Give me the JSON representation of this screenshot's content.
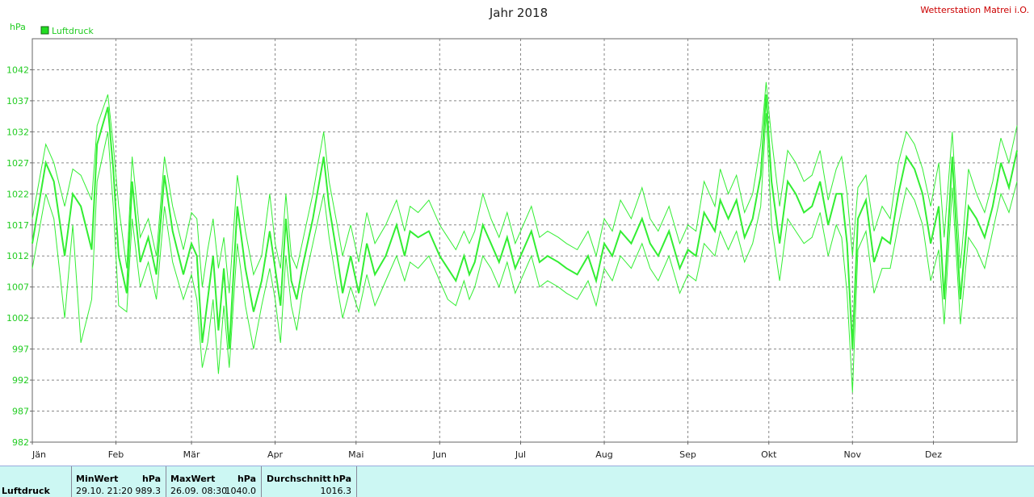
{
  "title": "Jahr 2018",
  "station": "Wetterstation Matrei i.O.",
  "unit": "hPa",
  "legend": {
    "label": "Luftdruck",
    "color": "#22dd22"
  },
  "chart_data": {
    "type": "line",
    "ylim": [
      982,
      1047
    ],
    "yticks": [
      982,
      987,
      992,
      997,
      1002,
      1007,
      1012,
      1017,
      1022,
      1027,
      1032,
      1037,
      1042
    ],
    "xlim": [
      0,
      365
    ],
    "months": [
      "Jän",
      "Feb",
      "Mär",
      "Apr",
      "Mai",
      "Jun",
      "Jul",
      "Aug",
      "Sep",
      "Okt",
      "Nov",
      "Dez"
    ],
    "month_starts": [
      0,
      31,
      59,
      90,
      120,
      151,
      181,
      212,
      243,
      273,
      304,
      334
    ],
    "grid": true,
    "series": [
      {
        "role": "max",
        "x": [
          0,
          5,
          8,
          12,
          15,
          18,
          22,
          24,
          28,
          30,
          32,
          35,
          37,
          40,
          43,
          46,
          49,
          52,
          56,
          59,
          61,
          63,
          65,
          67,
          69,
          71,
          73,
          76,
          79,
          82,
          85,
          88,
          90,
          92,
          94,
          96,
          98,
          100,
          104,
          108,
          110,
          113,
          115,
          118,
          121,
          124,
          127,
          131,
          135,
          138,
          140,
          143,
          147,
          151,
          154,
          157,
          160,
          162,
          164,
          167,
          170,
          173,
          176,
          179,
          182,
          185,
          188,
          191,
          195,
          198,
          202,
          206,
          209,
          212,
          215,
          218,
          222,
          226,
          229,
          232,
          236,
          240,
          243,
          246,
          249,
          253,
          255,
          258,
          261,
          264,
          267,
          270,
          272,
          274,
          277,
          280,
          283,
          286,
          289,
          292,
          295,
          298,
          300,
          302,
          304,
          306,
          309,
          312,
          315,
          318,
          321,
          324,
          327,
          330,
          333,
          336,
          338,
          341,
          344,
          347,
          350,
          353,
          356,
          359,
          362,
          365
        ],
        "y": [
          1018,
          1030,
          1027,
          1020,
          1026,
          1025,
          1021,
          1033,
          1038,
          1030,
          1020,
          1010,
          1028,
          1015,
          1018,
          1012,
          1028,
          1020,
          1013,
          1019,
          1018,
          1007,
          1013,
          1018,
          1010,
          1015,
          1006,
          1025,
          1016,
          1009,
          1012,
          1022,
          1014,
          1010,
          1022,
          1012,
          1010,
          1014,
          1022,
          1032,
          1024,
          1017,
          1012,
          1017,
          1011,
          1019,
          1014,
          1017,
          1021,
          1016,
          1020,
          1019,
          1021,
          1017,
          1015,
          1013,
          1016,
          1014,
          1016,
          1022,
          1018,
          1015,
          1019,
          1014,
          1017,
          1020,
          1015,
          1016,
          1015,
          1014,
          1013,
          1016,
          1012,
          1018,
          1016,
          1021,
          1018,
          1023,
          1018,
          1016,
          1020,
          1014,
          1017,
          1016,
          1024,
          1020,
          1026,
          1022,
          1025,
          1019,
          1022,
          1030,
          1040,
          1031,
          1020,
          1029,
          1027,
          1024,
          1025,
          1029,
          1021,
          1026,
          1028,
          1022,
          1012,
          1023,
          1025,
          1016,
          1020,
          1018,
          1027,
          1032,
          1030,
          1026,
          1020,
          1027,
          1015,
          1032,
          1010,
          1026,
          1022,
          1019,
          1024,
          1031,
          1027,
          1033
        ]
      },
      {
        "role": "avg",
        "x": [
          0,
          5,
          8,
          12,
          15,
          18,
          22,
          24,
          28,
          30,
          32,
          35,
          37,
          40,
          43,
          46,
          49,
          52,
          56,
          59,
          61,
          63,
          65,
          67,
          69,
          71,
          73,
          76,
          79,
          82,
          85,
          88,
          90,
          92,
          94,
          96,
          98,
          100,
          104,
          108,
          110,
          113,
          115,
          118,
          121,
          124,
          127,
          131,
          135,
          138,
          140,
          143,
          147,
          151,
          154,
          157,
          160,
          162,
          164,
          167,
          170,
          173,
          176,
          179,
          182,
          185,
          188,
          191,
          195,
          198,
          202,
          206,
          209,
          212,
          215,
          218,
          222,
          226,
          229,
          232,
          236,
          240,
          243,
          246,
          249,
          253,
          255,
          258,
          261,
          264,
          267,
          270,
          272,
          274,
          277,
          280,
          283,
          286,
          289,
          292,
          295,
          298,
          300,
          302,
          304,
          306,
          309,
          312,
          315,
          318,
          321,
          324,
          327,
          330,
          333,
          336,
          338,
          341,
          344,
          347,
          350,
          353,
          356,
          359,
          362,
          365
        ],
        "y": [
          1014,
          1027,
          1024,
          1012,
          1022,
          1020,
          1013,
          1030,
          1036,
          1026,
          1012,
          1006,
          1024,
          1011,
          1015,
          1009,
          1025,
          1016,
          1009,
          1014,
          1012,
          998,
          1005,
          1012,
          1000,
          1010,
          997,
          1020,
          1010,
          1003,
          1008,
          1016,
          1010,
          1004,
          1018,
          1008,
          1005,
          1010,
          1018,
          1028,
          1020,
          1012,
          1006,
          1012,
          1006,
          1014,
          1009,
          1012,
          1017,
          1012,
          1016,
          1015,
          1016,
          1012,
          1010,
          1008,
          1012,
          1009,
          1011,
          1017,
          1014,
          1011,
          1015,
          1010,
          1013,
          1016,
          1011,
          1012,
          1011,
          1010,
          1009,
          1012,
          1008,
          1014,
          1012,
          1016,
          1014,
          1018,
          1014,
          1012,
          1016,
          1010,
          1013,
          1012,
          1019,
          1016,
          1021,
          1018,
          1021,
          1015,
          1018,
          1025,
          1038,
          1024,
          1014,
          1024,
          1022,
          1019,
          1020,
          1024,
          1017,
          1022,
          1022,
          1014,
          997,
          1018,
          1021,
          1011,
          1015,
          1014,
          1022,
          1028,
          1026,
          1022,
          1014,
          1020,
          1005,
          1028,
          1005,
          1020,
          1018,
          1015,
          1020,
          1027,
          1023,
          1029
        ]
      },
      {
        "role": "min",
        "x": [
          0,
          5,
          8,
          12,
          15,
          18,
          22,
          24,
          28,
          30,
          32,
          35,
          37,
          40,
          43,
          46,
          49,
          52,
          56,
          59,
          61,
          63,
          65,
          67,
          69,
          71,
          73,
          76,
          79,
          82,
          85,
          88,
          90,
          92,
          94,
          96,
          98,
          100,
          104,
          108,
          110,
          113,
          115,
          118,
          121,
          124,
          127,
          131,
          135,
          138,
          140,
          143,
          147,
          151,
          154,
          157,
          160,
          162,
          164,
          167,
          170,
          173,
          176,
          179,
          182,
          185,
          188,
          191,
          195,
          198,
          202,
          206,
          209,
          212,
          215,
          218,
          222,
          226,
          229,
          232,
          236,
          240,
          243,
          246,
          249,
          253,
          255,
          258,
          261,
          264,
          267,
          270,
          272,
          274,
          277,
          280,
          283,
          286,
          289,
          292,
          295,
          298,
          300,
          302,
          304,
          306,
          309,
          312,
          315,
          318,
          321,
          324,
          327,
          330,
          333,
          336,
          338,
          341,
          344,
          347,
          350,
          353,
          356,
          359,
          362,
          365
        ],
        "y": [
          1010,
          1022,
          1018,
          1002,
          1017,
          998,
          1005,
          1024,
          1032,
          1020,
          1004,
          1003,
          1018,
          1007,
          1011,
          1005,
          1020,
          1011,
          1005,
          1009,
          1005,
          994,
          998,
          1005,
          993,
          1004,
          994,
          1014,
          1004,
          997,
          1004,
          1010,
          1005,
          998,
          1012,
          1004,
          1000,
          1006,
          1014,
          1022,
          1015,
          1007,
          1002,
          1007,
          1003,
          1009,
          1004,
          1008,
          1012,
          1008,
          1011,
          1010,
          1012,
          1008,
          1005,
          1004,
          1008,
          1005,
          1007,
          1012,
          1010,
          1007,
          1011,
          1006,
          1009,
          1012,
          1007,
          1008,
          1007,
          1006,
          1005,
          1008,
          1004,
          1010,
          1008,
          1012,
          1010,
          1014,
          1010,
          1008,
          1012,
          1006,
          1009,
          1008,
          1014,
          1012,
          1016,
          1013,
          1016,
          1011,
          1014,
          1020,
          1035,
          1017,
          1008,
          1018,
          1016,
          1014,
          1015,
          1019,
          1012,
          1017,
          1015,
          1006,
          990,
          1013,
          1016,
          1006,
          1010,
          1010,
          1017,
          1023,
          1021,
          1017,
          1008,
          1013,
          1001,
          1023,
          1001,
          1015,
          1013,
          1010,
          1016,
          1022,
          1019,
          1024
        ]
      }
    ]
  },
  "stats": {
    "row_label": "Luftdruck",
    "min": {
      "header": "MinWert",
      "unit": "hPa",
      "when": "29.10.  21:20",
      "value": "989.3"
    },
    "max": {
      "header": "MaxWert",
      "unit": "hPa",
      "when": "26.09.  08:30",
      "value": "1040.0"
    },
    "avg": {
      "header": "Durchschnitt",
      "unit": "hPa",
      "value": "1016.3"
    }
  }
}
